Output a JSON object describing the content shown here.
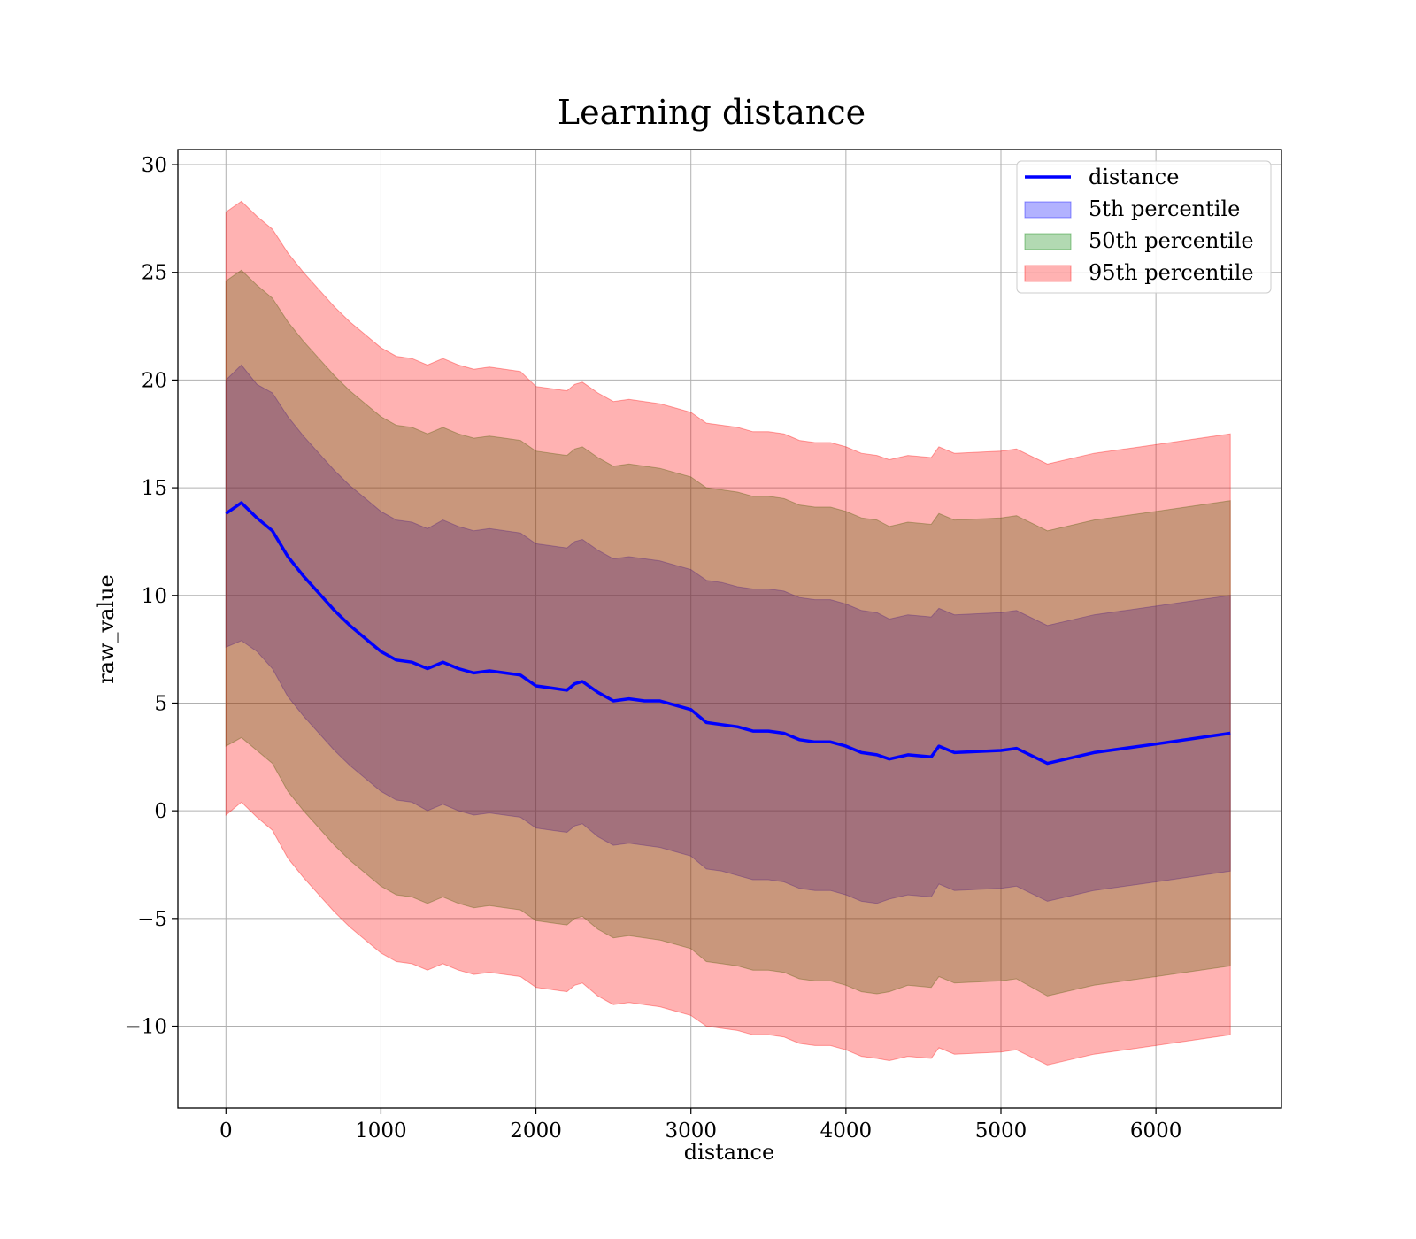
{
  "chart_data": {
    "type": "line",
    "title": "Learning distance",
    "xlabel": "distance",
    "ylabel": "raw_value",
    "xlim": [
      -310,
      6810
    ],
    "ylim": [
      -13.8,
      30.7
    ],
    "xticks": [
      0,
      1000,
      2000,
      3000,
      4000,
      5000,
      6000
    ],
    "yticks": [
      -10,
      -5,
      0,
      5,
      10,
      15,
      20,
      25,
      30
    ],
    "xtick_labels": [
      "0",
      "1000",
      "2000",
      "3000",
      "4000",
      "5000",
      "6000"
    ],
    "ytick_labels": [
      "−10",
      "−5",
      "0",
      "5",
      "10",
      "15",
      "20",
      "25",
      "30"
    ],
    "grid": true,
    "legend_position": "top-right",
    "x": [
      0,
      100,
      200,
      300,
      400,
      500,
      600,
      700,
      800,
      900,
      1000,
      1100,
      1200,
      1300,
      1400,
      1500,
      1600,
      1700,
      1800,
      1900,
      2000,
      2100,
      2200,
      2250,
      2300,
      2400,
      2500,
      2600,
      2700,
      2800,
      2900,
      3000,
      3100,
      3200,
      3300,
      3400,
      3500,
      3600,
      3700,
      3800,
      3900,
      4000,
      4100,
      4200,
      4280,
      4400,
      4550,
      4600,
      4700,
      5000,
      5100,
      5300,
      5600,
      6000,
      6480
    ],
    "series": [
      {
        "name": "distance",
        "kind": "line",
        "color": "#0000ff",
        "y": [
          13.8,
          14.3,
          13.6,
          13.0,
          11.8,
          10.9,
          10.1,
          9.3,
          8.6,
          8.0,
          7.4,
          7.0,
          6.9,
          6.6,
          6.9,
          6.6,
          6.4,
          6.5,
          6.4,
          6.3,
          5.8,
          5.7,
          5.6,
          5.9,
          6.0,
          5.5,
          5.1,
          5.2,
          5.1,
          5.1,
          4.9,
          4.7,
          4.1,
          4.0,
          3.9,
          3.7,
          3.7,
          3.6,
          3.3,
          3.2,
          3.2,
          3.0,
          2.7,
          2.6,
          2.4,
          2.6,
          2.5,
          3.0,
          2.7,
          2.8,
          2.9,
          2.2,
          2.7,
          3.1,
          3.6
        ]
      },
      {
        "name": "5th percentile",
        "kind": "band",
        "color": "#0000ff",
        "lower": [
          7.6,
          7.9,
          7.4,
          6.6,
          5.3,
          4.4,
          3.6,
          2.8,
          2.1,
          1.5,
          0.9,
          0.5,
          0.4,
          0.0,
          0.3,
          0.0,
          -0.2,
          -0.1,
          -0.2,
          -0.3,
          -0.8,
          -0.9,
          -1.0,
          -0.7,
          -0.6,
          -1.2,
          -1.6,
          -1.5,
          -1.6,
          -1.7,
          -1.9,
          -2.1,
          -2.7,
          -2.8,
          -3.0,
          -3.2,
          -3.2,
          -3.3,
          -3.6,
          -3.7,
          -3.7,
          -3.9,
          -4.2,
          -4.3,
          -4.1,
          -3.9,
          -4.0,
          -3.4,
          -3.7,
          -3.6,
          -3.5,
          -4.2,
          -3.7,
          -3.3,
          -2.8
        ],
        "upper": [
          20.0,
          20.7,
          19.8,
          19.4,
          18.3,
          17.4,
          16.6,
          15.8,
          15.1,
          14.5,
          13.9,
          13.5,
          13.4,
          13.1,
          13.5,
          13.2,
          13.0,
          13.1,
          13.0,
          12.9,
          12.4,
          12.3,
          12.2,
          12.5,
          12.6,
          12.1,
          11.7,
          11.8,
          11.7,
          11.6,
          11.4,
          11.2,
          10.7,
          10.6,
          10.4,
          10.3,
          10.3,
          10.2,
          9.9,
          9.8,
          9.8,
          9.6,
          9.3,
          9.2,
          8.9,
          9.1,
          9.0,
          9.4,
          9.1,
          9.2,
          9.3,
          8.6,
          9.1,
          9.5,
          10.0
        ]
      },
      {
        "name": "50th percentile",
        "kind": "band",
        "color": "#008000",
        "lower": [
          3.0,
          3.4,
          2.8,
          2.2,
          0.9,
          0.0,
          -0.8,
          -1.6,
          -2.3,
          -2.9,
          -3.5,
          -3.9,
          -4.0,
          -4.3,
          -4.0,
          -4.3,
          -4.5,
          -4.4,
          -4.5,
          -4.6,
          -5.1,
          -5.2,
          -5.3,
          -5.0,
          -4.9,
          -5.5,
          -5.9,
          -5.8,
          -5.9,
          -6.0,
          -6.2,
          -6.4,
          -7.0,
          -7.1,
          -7.2,
          -7.4,
          -7.4,
          -7.5,
          -7.8,
          -7.9,
          -7.9,
          -8.1,
          -8.4,
          -8.5,
          -8.4,
          -8.1,
          -8.2,
          -7.7,
          -8.0,
          -7.9,
          -7.8,
          -8.6,
          -8.1,
          -7.7,
          -7.2
        ],
        "upper": [
          24.6,
          25.1,
          24.4,
          23.8,
          22.7,
          21.8,
          21.0,
          20.2,
          19.5,
          18.9,
          18.3,
          17.9,
          17.8,
          17.5,
          17.8,
          17.5,
          17.3,
          17.4,
          17.3,
          17.2,
          16.7,
          16.6,
          16.5,
          16.8,
          16.9,
          16.4,
          16.0,
          16.1,
          16.0,
          15.9,
          15.7,
          15.5,
          15.0,
          14.9,
          14.8,
          14.6,
          14.6,
          14.5,
          14.2,
          14.1,
          14.1,
          13.9,
          13.6,
          13.5,
          13.2,
          13.4,
          13.3,
          13.8,
          13.5,
          13.6,
          13.7,
          13.0,
          13.5,
          13.9,
          14.4
        ]
      },
      {
        "name": "95th percentile",
        "kind": "band",
        "color": "#ff0000",
        "lower": [
          -0.2,
          0.4,
          -0.3,
          -0.9,
          -2.2,
          -3.1,
          -3.9,
          -4.7,
          -5.4,
          -6.0,
          -6.6,
          -7.0,
          -7.1,
          -7.4,
          -7.1,
          -7.4,
          -7.6,
          -7.5,
          -7.6,
          -7.7,
          -8.2,
          -8.3,
          -8.4,
          -8.1,
          -8.0,
          -8.6,
          -9.0,
          -8.9,
          -9.0,
          -9.1,
          -9.3,
          -9.5,
          -10.0,
          -10.1,
          -10.2,
          -10.4,
          -10.4,
          -10.5,
          -10.8,
          -10.9,
          -10.9,
          -11.1,
          -11.4,
          -11.5,
          -11.6,
          -11.4,
          -11.5,
          -11.0,
          -11.3,
          -11.2,
          -11.1,
          -11.8,
          -11.3,
          -10.9,
          -10.4
        ],
        "upper": [
          27.8,
          28.3,
          27.6,
          27.0,
          25.9,
          25.0,
          24.2,
          23.4,
          22.7,
          22.1,
          21.5,
          21.1,
          21.0,
          20.7,
          21.0,
          20.7,
          20.5,
          20.6,
          20.5,
          20.4,
          19.7,
          19.6,
          19.5,
          19.8,
          19.9,
          19.4,
          19.0,
          19.1,
          19.0,
          18.9,
          18.7,
          18.5,
          18.0,
          17.9,
          17.8,
          17.6,
          17.6,
          17.5,
          17.2,
          17.1,
          17.1,
          16.9,
          16.6,
          16.5,
          16.3,
          16.5,
          16.4,
          16.9,
          16.6,
          16.7,
          16.8,
          16.1,
          16.6,
          17.0,
          17.5
        ]
      }
    ]
  }
}
